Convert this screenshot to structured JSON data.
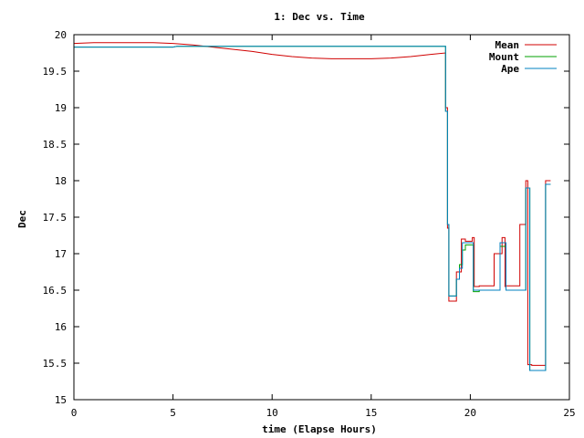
{
  "chart_data": {
    "type": "line",
    "title": "1: Dec vs. Time",
    "xlabel": "time (Elapse Hours)",
    "ylabel": "Dec",
    "xlim": [
      0,
      25
    ],
    "ylim": [
      15,
      20
    ],
    "xticks": [
      0,
      5,
      10,
      15,
      20,
      25
    ],
    "yticks": [
      15,
      15.5,
      16,
      16.5,
      17,
      17.5,
      18,
      18.5,
      19,
      19.5,
      20
    ],
    "grid": false,
    "legend_position": "top-right",
    "series": [
      {
        "name": "Mean",
        "color": "#d00000",
        "x": [
          0,
          1,
          2,
          3,
          4,
          5,
          6,
          7,
          8,
          9,
          10,
          11,
          12,
          13,
          14,
          15,
          16,
          17,
          18,
          18.75,
          18.75,
          18.85,
          18.85,
          18.92,
          18.92,
          19.3,
          19.3,
          19.55,
          19.55,
          19.75,
          19.75,
          20.1,
          20.1,
          20.2,
          20.2,
          20.45,
          20.45,
          21.2,
          21.2,
          21.6,
          21.6,
          21.75,
          21.75,
          21.8,
          21.8,
          22.5,
          22.5,
          22.8,
          22.8,
          22.9,
          22.9,
          23.1,
          23.1,
          23.8,
          23.8,
          24.05
        ],
        "y": [
          19.88,
          19.89,
          19.89,
          19.89,
          19.89,
          19.88,
          19.86,
          19.83,
          19.8,
          19.77,
          19.73,
          19.7,
          19.68,
          19.67,
          19.67,
          19.67,
          19.68,
          19.7,
          19.73,
          19.75,
          19.0,
          19.0,
          17.35,
          17.35,
          16.35,
          16.35,
          16.75,
          16.75,
          17.2,
          17.2,
          17.17,
          17.17,
          17.22,
          17.22,
          16.55,
          16.55,
          16.56,
          16.56,
          17.0,
          17.0,
          17.22,
          17.22,
          16.55,
          16.55,
          16.56,
          16.56,
          17.4,
          17.4,
          18.0,
          18.0,
          15.48,
          15.48,
          15.47,
          15.47,
          18.0,
          18.0
        ]
      },
      {
        "name": "Mount",
        "color": "#00a000",
        "x": [
          0,
          5,
          5.2,
          18.75,
          18.75,
          18.85,
          18.85,
          18.92,
          18.92,
          19.3,
          19.3,
          19.45,
          19.45,
          19.6,
          19.6,
          19.75,
          19.75,
          20.15,
          20.15,
          20.45,
          20.45,
          21.5,
          21.5,
          21.8,
          21.8,
          22.8,
          22.8,
          23.0,
          23.0,
          23.8,
          23.8,
          24.05
        ],
        "y": [
          19.83,
          19.83,
          19.84,
          19.84,
          18.95,
          18.95,
          17.4,
          17.4,
          16.42,
          16.42,
          16.65,
          16.65,
          16.85,
          16.85,
          17.05,
          17.05,
          17.12,
          17.12,
          16.48,
          16.48,
          16.5,
          16.5,
          17.1,
          17.1,
          16.5,
          16.5,
          17.9,
          17.9,
          15.4,
          15.4,
          17.95,
          17.95
        ]
      },
      {
        "name": "Ape",
        "color": "#0080c0",
        "x": [
          0,
          5,
          5.2,
          18.75,
          18.75,
          18.85,
          18.85,
          18.92,
          18.92,
          19.3,
          19.3,
          19.45,
          19.45,
          19.6,
          19.6,
          19.75,
          19.75,
          20.15,
          20.15,
          20.45,
          20.45,
          21.5,
          21.5,
          21.8,
          21.8,
          22.8,
          22.8,
          23.0,
          23.0,
          23.8,
          23.8,
          24.05
        ],
        "y": [
          19.83,
          19.83,
          19.84,
          19.84,
          18.95,
          18.95,
          17.4,
          17.4,
          16.42,
          16.42,
          16.65,
          16.65,
          16.8,
          16.8,
          17.15,
          17.15,
          17.15,
          17.15,
          16.5,
          16.5,
          16.5,
          16.5,
          17.15,
          17.15,
          16.5,
          16.5,
          17.9,
          17.9,
          15.4,
          15.4,
          17.95,
          17.95
        ]
      }
    ]
  }
}
